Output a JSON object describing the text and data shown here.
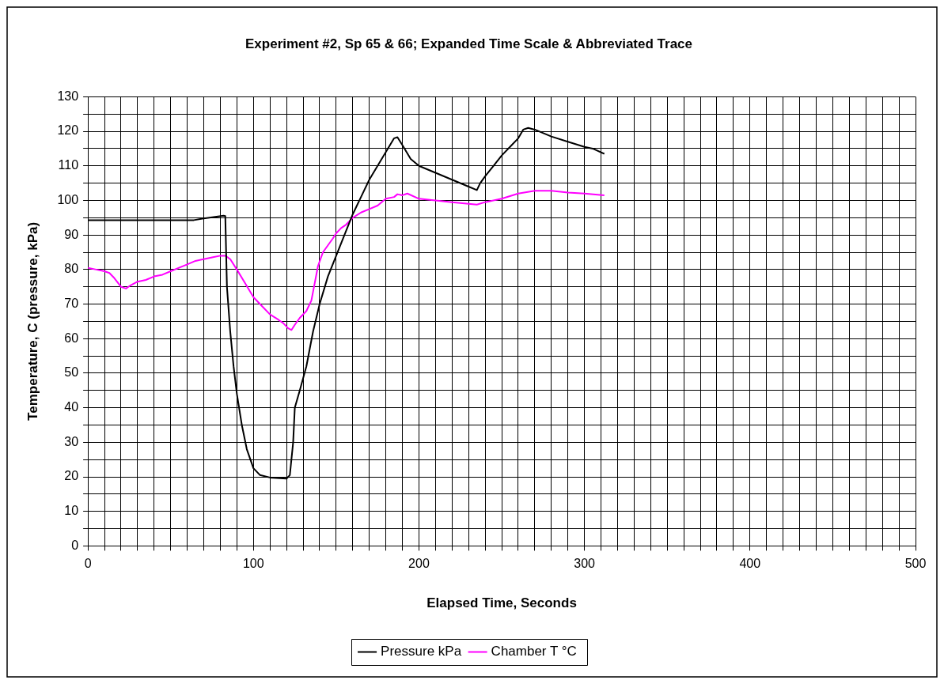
{
  "chart_data": {
    "type": "line",
    "title": "Experiment #2, Sp 65 & 66; Expanded Time Scale & Abbreviated Trace",
    "xlabel": "Elapsed Time, Seconds",
    "ylabel": "Temperature, C (pressure, kPa)",
    "xlim": [
      0,
      500
    ],
    "ylim": [
      0,
      130
    ],
    "xticks": [
      0,
      {
        "value": 10,
        "label": null
      },
      {
        "value": 20,
        "label": null
      },
      {
        "value": 30,
        "label": null
      },
      {
        "value": 40,
        "label": null
      },
      {
        "value": 50,
        "label": null
      },
      {
        "value": 60,
        "label": null
      },
      {
        "value": 70,
        "label": null
      },
      {
        "value": 80,
        "label": null
      },
      {
        "value": 90,
        "label": null
      },
      100,
      {
        "value": 110,
        "label": null
      },
      {
        "value": 120,
        "label": null
      },
      {
        "value": 130,
        "label": null
      },
      {
        "value": 140,
        "label": null
      },
      {
        "value": 150,
        "label": null
      },
      {
        "value": 160,
        "label": null
      },
      {
        "value": 170,
        "label": null
      },
      {
        "value": 180,
        "label": null
      },
      {
        "value": 190,
        "label": null
      },
      200,
      {
        "value": 210,
        "label": null
      },
      {
        "value": 220,
        "label": null
      },
      {
        "value": 230,
        "label": null
      },
      {
        "value": 240,
        "label": null
      },
      {
        "value": 250,
        "label": null
      },
      {
        "value": 260,
        "label": null
      },
      {
        "value": 270,
        "label": null
      },
      {
        "value": 280,
        "label": null
      },
      {
        "value": 290,
        "label": null
      },
      300,
      {
        "value": 310,
        "label": null
      },
      {
        "value": 320,
        "label": null
      },
      {
        "value": 330,
        "label": null
      },
      {
        "value": 340,
        "label": null
      },
      {
        "value": 350,
        "label": null
      },
      {
        "value": 360,
        "label": null
      },
      {
        "value": 370,
        "label": null
      },
      {
        "value": 380,
        "label": null
      },
      {
        "value": 390,
        "label": null
      },
      400,
      {
        "value": 410,
        "label": null
      },
      {
        "value": 420,
        "label": null
      },
      {
        "value": 430,
        "label": null
      },
      {
        "value": 440,
        "label": null
      },
      {
        "value": 450,
        "label": null
      },
      {
        "value": 460,
        "label": null
      },
      {
        "value": 470,
        "label": null
      },
      {
        "value": 480,
        "label": null
      },
      {
        "value": 490,
        "label": null
      },
      500
    ],
    "yticks": [
      0,
      {
        "value": 5,
        "label": null
      },
      10,
      {
        "value": 15,
        "label": null
      },
      20,
      {
        "value": 25,
        "label": null
      },
      30,
      {
        "value": 35,
        "label": null
      },
      40,
      {
        "value": 45,
        "label": null
      },
      50,
      {
        "value": 55,
        "label": null
      },
      60,
      {
        "value": 65,
        "label": null
      },
      70,
      {
        "value": 75,
        "label": null
      },
      80,
      {
        "value": 85,
        "label": null
      },
      90,
      {
        "value": 95,
        "label": null
      },
      100,
      {
        "value": 105,
        "label": null
      },
      110,
      {
        "value": 115,
        "label": null
      },
      120,
      {
        "value": 125,
        "label": null
      },
      130
    ],
    "grid": true,
    "legend": "bottom",
    "marker": "none",
    "line_style": "solid",
    "series": [
      {
        "name": "Pressure kPa",
        "color": "#000000",
        "x": [
          0,
          30,
          64,
          70,
          82,
          83,
          84,
          86,
          88,
          90,
          93,
          96,
          100,
          104,
          110,
          120,
          122,
          124,
          125,
          128,
          132,
          136,
          140,
          145,
          150,
          155,
          160,
          165,
          170,
          175,
          180,
          185,
          187,
          190,
          195,
          200,
          210,
          220,
          230,
          235,
          237,
          240,
          245,
          250,
          255,
          260,
          263,
          266,
          270,
          280,
          290,
          300,
          305,
          312
        ],
        "values": [
          94.3,
          94.3,
          94.3,
          94.8,
          95.6,
          95.5,
          75,
          62,
          52,
          44,
          35,
          28,
          22.5,
          20.5,
          19.8,
          19.5,
          20.5,
          30,
          40,
          45,
          52,
          62,
          70,
          78,
          84,
          90,
          96,
          101,
          106,
          110,
          114,
          118,
          118.3,
          116,
          112,
          110,
          108,
          106,
          104,
          103,
          105,
          107,
          110,
          113,
          115.5,
          118,
          120.5,
          121,
          120.5,
          118.5,
          117,
          115.5,
          115,
          113.5
        ]
      },
      {
        "name": "Chamber T °C",
        "color": "#ff00ff",
        "x": [
          0,
          5,
          10,
          13,
          16,
          20,
          23,
          26,
          30,
          35,
          40,
          45,
          50,
          55,
          60,
          65,
          70,
          75,
          80,
          83,
          86,
          90,
          95,
          100,
          105,
          110,
          115,
          118,
          121,
          123,
          125,
          128,
          132,
          135,
          137,
          139,
          142,
          145,
          148,
          150,
          153,
          156,
          160,
          165,
          170,
          175,
          180,
          185,
          187,
          190,
          193,
          200,
          210,
          220,
          230,
          235,
          240,
          250,
          260,
          270,
          280,
          290,
          300,
          312
        ],
        "values": [
          80.5,
          80,
          79.5,
          79,
          77.5,
          75,
          74.5,
          75.5,
          76.5,
          77,
          78,
          78.5,
          79.5,
          80.5,
          81.5,
          82.5,
          83,
          83.5,
          84,
          84,
          83,
          80,
          76,
          72,
          69.5,
          67,
          65.5,
          64.5,
          63,
          62.5,
          64,
          66,
          68,
          71,
          76,
          81,
          85,
          87,
          89,
          90.5,
          92,
          93,
          95,
          96.5,
          97.5,
          98.5,
          100.5,
          101,
          101.8,
          101.5,
          102,
          100.5,
          100,
          99.5,
          99,
          98.8,
          99.5,
          100.5,
          102,
          102.8,
          102.8,
          102.3,
          102,
          101.5
        ]
      }
    ]
  }
}
